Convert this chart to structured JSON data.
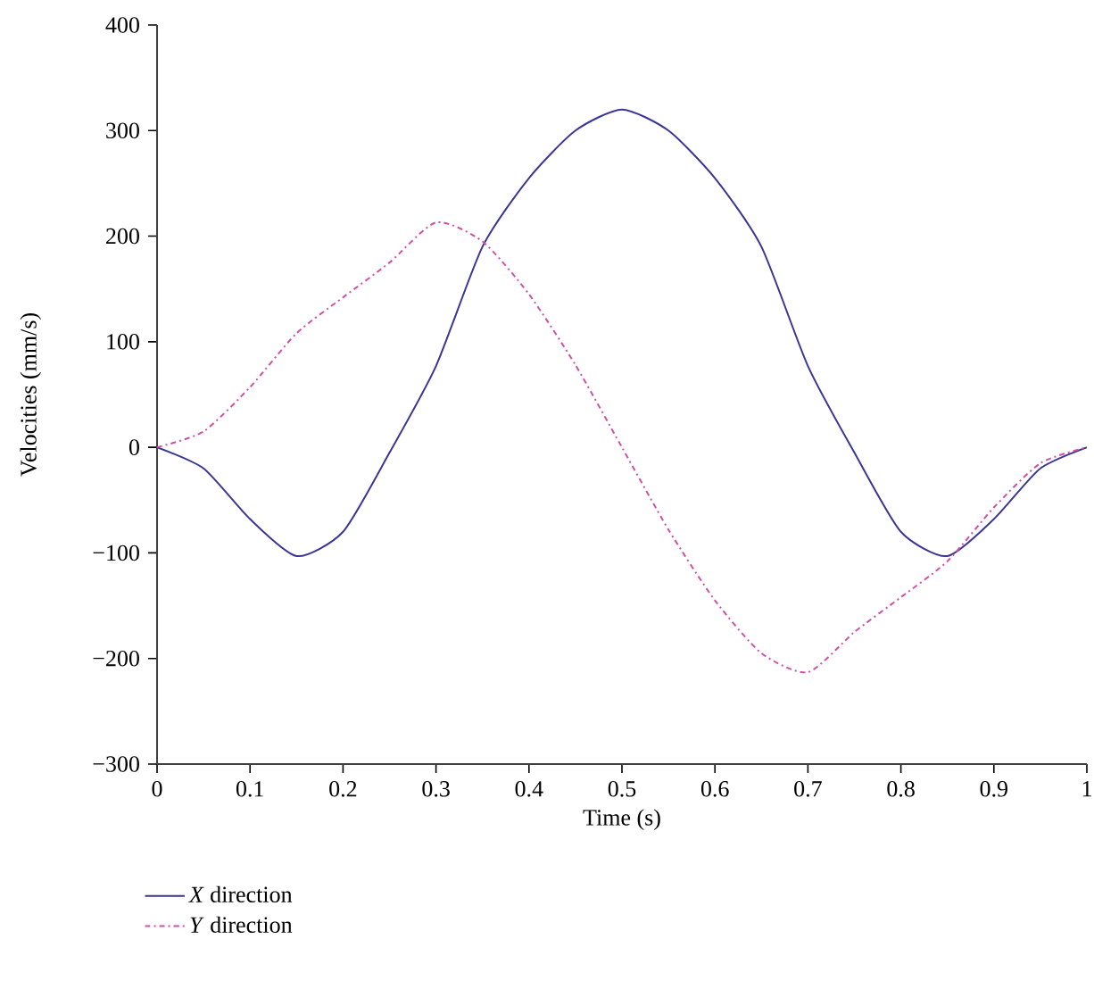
{
  "chart_data": {
    "type": "line",
    "xlabel": "Time (s)",
    "ylabel": "Velocities (mm/s)",
    "xlim": [
      0,
      1
    ],
    "ylim": [
      -300,
      400
    ],
    "xticks": [
      0,
      0.1,
      0.2,
      0.3,
      0.4,
      0.5,
      0.6,
      0.7,
      0.8,
      0.9,
      1
    ],
    "yticks": [
      {
        "value": -300,
        "label": "−300"
      },
      {
        "value": -200,
        "label": "−200"
      },
      {
        "value": -100,
        "label": "−100"
      },
      0,
      100,
      200,
      300,
      400
    ],
    "grid": false,
    "legend": "bottom left",
    "marker": "none",
    "x": [
      0,
      0.05,
      0.1,
      0.15,
      0.2,
      0.25,
      0.3,
      0.35,
      0.4,
      0.45,
      0.5,
      0.55,
      0.6,
      0.65,
      0.7,
      0.75,
      0.8,
      0.85,
      0.9,
      0.95,
      1
    ],
    "series": [
      {
        "name": "*X* direction",
        "color": "#3b3596",
        "line_style": "solid",
        "values": [
          0,
          -20,
          -68,
          -103,
          -80,
          -5,
          77,
          190,
          255,
          300,
          320,
          300,
          255,
          190,
          77,
          -5,
          -80,
          -103,
          -68,
          -20,
          0
        ]
      },
      {
        "name": "*Y* direction",
        "color": "#d050a8",
        "line_style": "dashdot",
        "values": [
          0,
          15,
          57,
          108,
          142,
          175,
          213,
          195,
          145,
          78,
          0,
          -78,
          -145,
          -195,
          -213,
          -175,
          -142,
          -108,
          -57,
          -15,
          0
        ]
      }
    ]
  }
}
